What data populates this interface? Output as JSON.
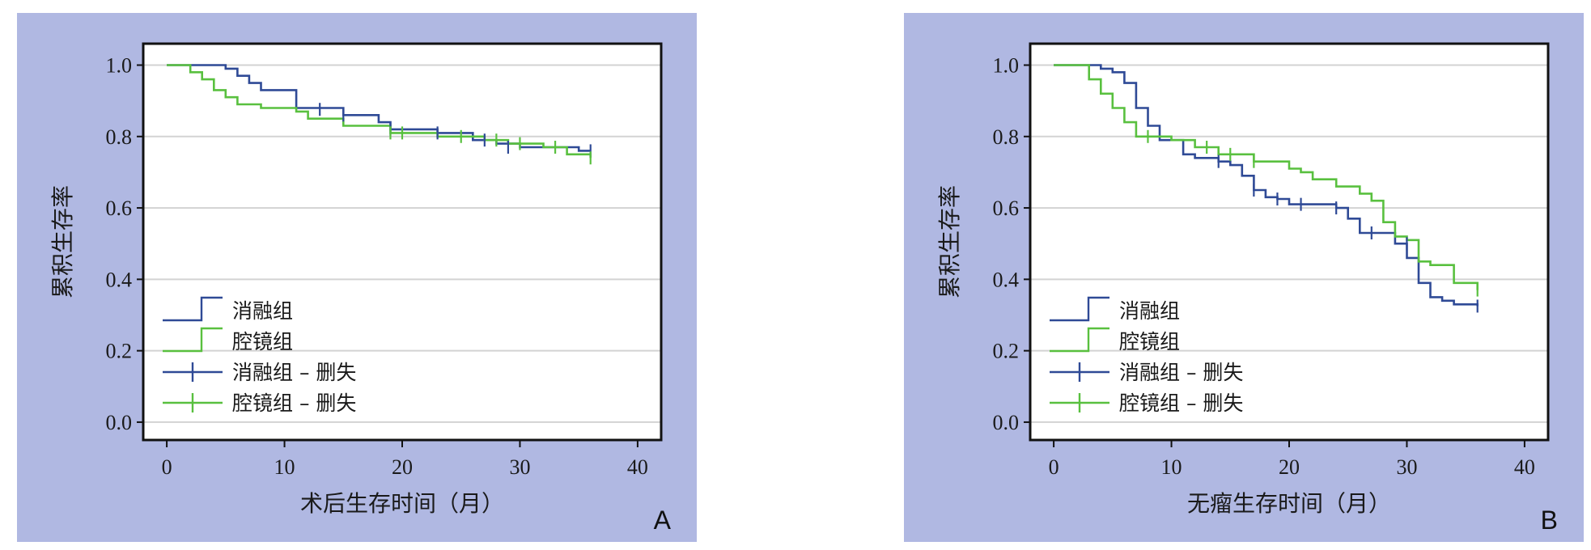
{
  "colors": {
    "series1": "#2f4a96",
    "series2": "#59c03f",
    "panel_bg": "#b0b8e2",
    "grid": "#d3d3d3"
  },
  "chart_data": [
    {
      "type": "line",
      "panel_label": "A",
      "xlabel": "术后生存时间（月）",
      "ylabel": "累积生存率",
      "xlim": [
        -2,
        42
      ],
      "ylim": [
        -0.05,
        1.06
      ],
      "xticks": [
        "0",
        "10",
        "20",
        "30",
        "40"
      ],
      "yticks": [
        "0.0",
        "0.2",
        "0.4",
        "0.6",
        "0.8",
        "1.0"
      ],
      "grid": "horizontal",
      "legend": [
        "消融组",
        "腔镜组",
        "消融组 – 删失",
        "腔镜组 – 删失"
      ],
      "series": [
        {
          "name": "消融组",
          "x": [
            0,
            5,
            6,
            7,
            8,
            11,
            15,
            18,
            19,
            23,
            26,
            28,
            30,
            35,
            36
          ],
          "y": [
            1.0,
            0.99,
            0.97,
            0.95,
            0.93,
            0.88,
            0.86,
            0.84,
            0.82,
            0.81,
            0.79,
            0.78,
            0.77,
            0.76,
            0.76
          ]
        },
        {
          "name": "腔镜组",
          "x": [
            0,
            2,
            3,
            4,
            5,
            6,
            8,
            11,
            12,
            15,
            19,
            23,
            27,
            29,
            32,
            34,
            36
          ],
          "y": [
            1.0,
            0.98,
            0.96,
            0.93,
            0.91,
            0.89,
            0.88,
            0.87,
            0.85,
            0.83,
            0.81,
            0.8,
            0.79,
            0.78,
            0.77,
            0.75,
            0.74
          ]
        },
        {
          "name": "消融组 – 删失",
          "x": [
            13,
            15,
            19,
            23,
            27,
            29,
            36
          ],
          "y": [
            0.876,
            0.86,
            0.82,
            0.81,
            0.79,
            0.77,
            0.76
          ]
        },
        {
          "name": "腔镜组 – 删失",
          "x": [
            19,
            20,
            25,
            28,
            30,
            33,
            36
          ],
          "y": [
            0.81,
            0.81,
            0.8,
            0.79,
            0.78,
            0.77,
            0.74
          ]
        }
      ]
    },
    {
      "type": "line",
      "panel_label": "B",
      "xlabel": "无瘤生存时间（月）",
      "ylabel": "累积生存率",
      "xlim": [
        -2,
        42
      ],
      "ylim": [
        -0.05,
        1.06
      ],
      "xticks": [
        "0",
        "10",
        "20",
        "30",
        "40"
      ],
      "yticks": [
        "0.0",
        "0.2",
        "0.4",
        "0.6",
        "0.8",
        "1.0"
      ],
      "grid": "horizontal",
      "legend": [
        "消融组",
        "腔镜组",
        "消融组 – 删失",
        "腔镜组 – 删失"
      ],
      "series": [
        {
          "name": "消融组",
          "x": [
            0,
            4,
            5,
            6,
            7,
            8,
            9,
            11,
            12,
            14,
            15,
            16,
            17,
            18,
            19,
            20,
            24,
            25,
            26,
            27,
            29,
            30,
            31,
            32,
            33,
            34,
            36
          ],
          "y": [
            1.0,
            0.99,
            0.98,
            0.95,
            0.88,
            0.83,
            0.79,
            0.75,
            0.74,
            0.73,
            0.72,
            0.69,
            0.65,
            0.63,
            0.625,
            0.61,
            0.6,
            0.57,
            0.53,
            0.53,
            0.5,
            0.46,
            0.39,
            0.35,
            0.34,
            0.33,
            0.325
          ]
        },
        {
          "name": "腔镜组",
          "x": [
            0,
            3,
            4,
            5,
            6,
            7,
            8,
            10,
            12,
            14,
            17,
            20,
            21,
            22,
            24,
            26,
            27,
            28,
            29,
            30,
            31,
            32,
            34,
            36
          ],
          "y": [
            1.0,
            0.96,
            0.92,
            0.88,
            0.84,
            0.8,
            0.8,
            0.79,
            0.77,
            0.75,
            0.73,
            0.71,
            0.7,
            0.68,
            0.66,
            0.64,
            0.62,
            0.56,
            0.52,
            0.51,
            0.45,
            0.44,
            0.39,
            0.37
          ]
        },
        {
          "name": "消融组 – 删失",
          "x": [
            14,
            17,
            19,
            21,
            24,
            27,
            30,
            36
          ],
          "y": [
            0.73,
            0.65,
            0.625,
            0.61,
            0.6,
            0.53,
            0.5,
            0.325
          ]
        },
        {
          "name": "腔镜组 – 删失",
          "x": [
            8,
            13,
            15,
            17,
            36
          ],
          "y": [
            0.8,
            0.77,
            0.75,
            0.73,
            0.37
          ]
        }
      ]
    }
  ]
}
